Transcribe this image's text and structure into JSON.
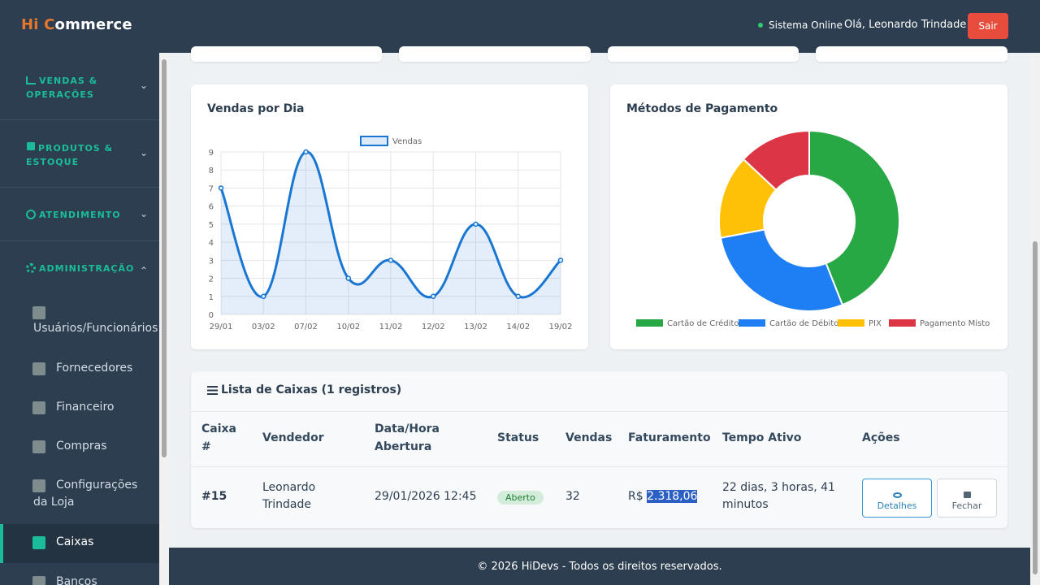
{
  "header": {
    "brand_hi": "Hi ",
    "brand_c": "C",
    "brand_rest": "ommerce",
    "status": "Sistema Online",
    "greeting": "Olá, Leonardo Trindade",
    "logout": "Sair"
  },
  "sidebar": {
    "sections": [
      {
        "line1": "VENDAS &",
        "line2": "OPERAÇÕES",
        "icon": "chart-line-icon"
      },
      {
        "line1": "PRODUTOS &",
        "line2": "ESTOQUE",
        "icon": "box-icon"
      },
      {
        "line1": "ATENDIMENTO",
        "line2": "",
        "icon": "headset-icon"
      },
      {
        "line1": "ADMINISTRAÇÃO",
        "line2": "",
        "icon": "gear-icon"
      }
    ],
    "items": [
      {
        "label": "Usuários/Funcionários"
      },
      {
        "label": "Fornecedores"
      },
      {
        "label": "Financeiro"
      },
      {
        "label": "Compras"
      },
      {
        "label1": "Configurações",
        "label2": "da Loja"
      },
      {
        "label": "Caixas"
      },
      {
        "label": "Bancos"
      }
    ]
  },
  "sales_chart": {
    "title": "Vendas por Dia",
    "legend": "Vendas"
  },
  "payment_chart": {
    "title": "Métodos de Pagamento",
    "legend": [
      "Cartão de Crédito",
      "Cartão de Débito",
      "PIX",
      "Pagamento Misto"
    ]
  },
  "chart_data": [
    {
      "type": "line",
      "title": "Vendas por Dia",
      "x": [
        "29/01",
        "03/02",
        "07/02",
        "10/02",
        "11/02",
        "12/02",
        "13/02",
        "14/02",
        "19/02"
      ],
      "series": [
        {
          "name": "Vendas",
          "values": [
            7,
            1,
            9,
            2,
            3,
            1,
            5,
            1,
            3
          ]
        }
      ],
      "ylim": [
        0,
        9
      ],
      "yticks": [
        0,
        1,
        2,
        3,
        4,
        5,
        6,
        7,
        8,
        9
      ],
      "grid": true,
      "legend_position": "top",
      "color": "#1976d2"
    },
    {
      "type": "pie",
      "title": "Métodos de Pagamento",
      "donut": true,
      "labels": [
        "Cartão de Crédito",
        "Cartão de Débito",
        "PIX",
        "Pagamento Misto"
      ],
      "values": [
        44,
        28,
        15,
        13
      ],
      "colors": [
        "#28a745",
        "#1e7ff5",
        "#ffc107",
        "#dc3545"
      ],
      "legend_position": "bottom"
    }
  ],
  "table": {
    "title": "Lista de Caixas (1 registros)",
    "headers": {
      "caixa1": "Caixa",
      "caixa2": "#",
      "vendedor": "Vendedor",
      "data1": "Data/Hora",
      "data2": "Abertura",
      "status": "Status",
      "vendas": "Vendas",
      "faturamento": "Faturamento",
      "tempo": "Tempo Ativo",
      "acoes": "Ações"
    },
    "row": {
      "id": "#15",
      "vendedor1": "Leonardo",
      "vendedor2": "Trindade",
      "data": "29/01/2026 12:45",
      "status": "Aberto",
      "vendas": "32",
      "fat_prefix": "R$ ",
      "fat_value": "2.318,06",
      "tempo1": "22 dias, 3 horas, 41",
      "tempo2": "minutos",
      "btn_detalhes": "Detalhes",
      "btn_fechar": "Fechar"
    }
  },
  "footer": {
    "text": "© 2026 HiDevs - Todos os direitos reservados."
  }
}
